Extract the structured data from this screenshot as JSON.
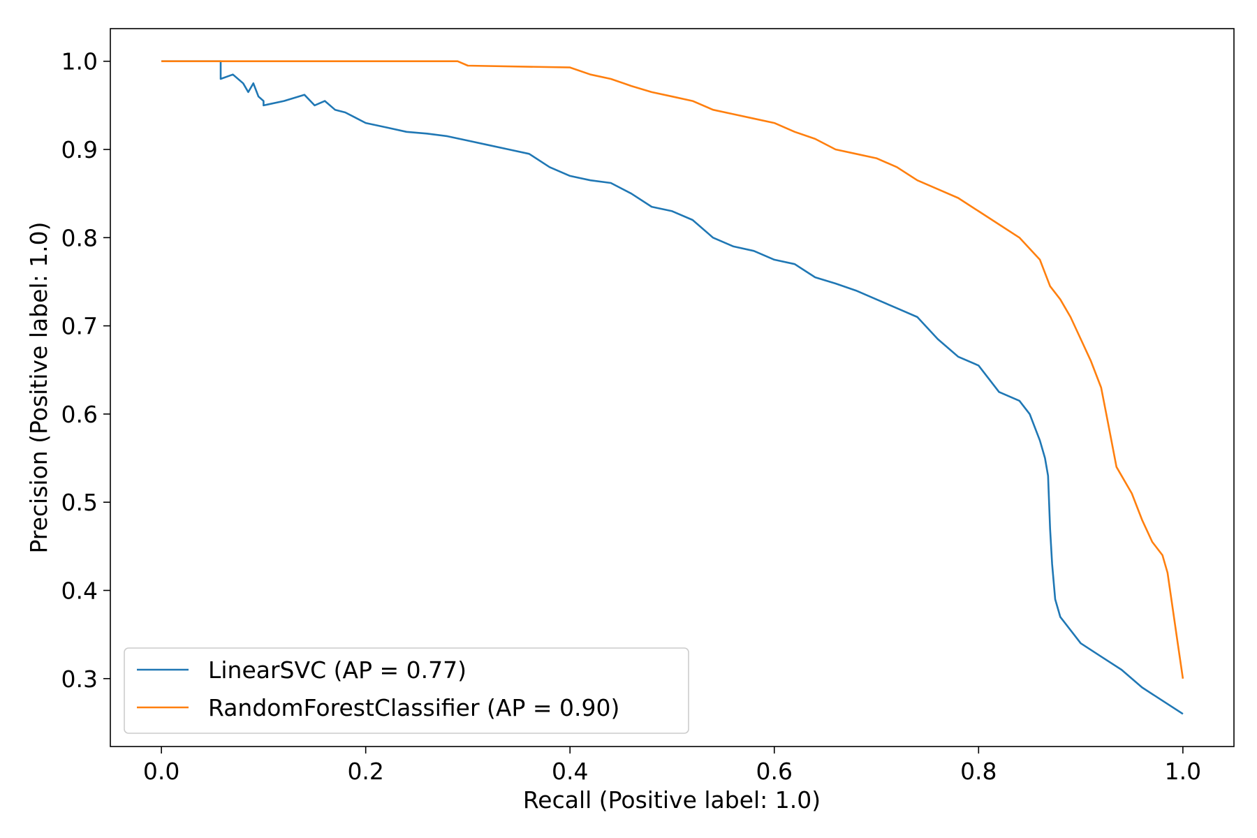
{
  "chart_data": {
    "type": "line",
    "title": "",
    "xlabel": "Recall (Positive label: 1.0)",
    "ylabel": "Precision (Positive label: 1.0)",
    "xlim": [
      -0.05,
      1.05
    ],
    "ylim": [
      0.223,
      1.037
    ],
    "xticks": [
      0.0,
      0.2,
      0.4,
      0.6,
      0.8,
      1.0
    ],
    "xtick_labels": [
      "0.0",
      "0.2",
      "0.4",
      "0.6",
      "0.8",
      "1.0"
    ],
    "yticks": [
      0.3,
      0.4,
      0.5,
      0.6,
      0.7,
      0.8,
      0.9,
      1.0
    ],
    "ytick_labels": [
      "0.3",
      "0.4",
      "0.5",
      "0.6",
      "0.7",
      "0.8",
      "0.9",
      "1.0"
    ],
    "grid": false,
    "legend_position": "lower-left",
    "series": [
      {
        "name": "LinearSVC (AP = 0.77)",
        "color": "#1f77b4",
        "x": [
          0.0,
          0.058,
          0.058,
          0.07,
          0.08,
          0.085,
          0.09,
          0.095,
          0.1,
          0.1,
          0.12,
          0.14,
          0.15,
          0.16,
          0.17,
          0.18,
          0.2,
          0.22,
          0.24,
          0.26,
          0.28,
          0.3,
          0.32,
          0.34,
          0.36,
          0.38,
          0.4,
          0.42,
          0.44,
          0.46,
          0.48,
          0.5,
          0.52,
          0.54,
          0.56,
          0.58,
          0.6,
          0.62,
          0.64,
          0.66,
          0.68,
          0.7,
          0.72,
          0.74,
          0.76,
          0.78,
          0.8,
          0.82,
          0.84,
          0.85,
          0.86,
          0.865,
          0.868,
          0.87,
          0.872,
          0.875,
          0.88,
          0.9,
          0.92,
          0.94,
          0.96,
          0.98,
          1.0
        ],
        "y": [
          1.0,
          1.0,
          0.98,
          0.985,
          0.975,
          0.965,
          0.975,
          0.96,
          0.955,
          0.95,
          0.955,
          0.962,
          0.95,
          0.955,
          0.945,
          0.942,
          0.93,
          0.925,
          0.92,
          0.918,
          0.915,
          0.91,
          0.905,
          0.9,
          0.895,
          0.88,
          0.87,
          0.865,
          0.862,
          0.85,
          0.835,
          0.83,
          0.82,
          0.8,
          0.79,
          0.785,
          0.775,
          0.77,
          0.755,
          0.748,
          0.74,
          0.73,
          0.72,
          0.71,
          0.685,
          0.665,
          0.655,
          0.625,
          0.615,
          0.6,
          0.57,
          0.55,
          0.53,
          0.47,
          0.43,
          0.39,
          0.37,
          0.34,
          0.325,
          0.31,
          0.29,
          0.275,
          0.26
        ]
      },
      {
        "name": "RandomForestClassifier (AP = 0.90)",
        "color": "#ff7f0e",
        "x": [
          0.0,
          0.29,
          0.3,
          0.4,
          0.42,
          0.44,
          0.46,
          0.48,
          0.5,
          0.52,
          0.54,
          0.56,
          0.58,
          0.6,
          0.62,
          0.64,
          0.66,
          0.68,
          0.7,
          0.72,
          0.74,
          0.76,
          0.78,
          0.8,
          0.82,
          0.84,
          0.86,
          0.87,
          0.88,
          0.89,
          0.9,
          0.91,
          0.92,
          0.925,
          0.93,
          0.935,
          0.94,
          0.95,
          0.96,
          0.97,
          0.98,
          0.985,
          0.99,
          0.995,
          1.0
        ],
        "y": [
          1.0,
          1.0,
          0.995,
          0.993,
          0.985,
          0.98,
          0.972,
          0.965,
          0.96,
          0.955,
          0.945,
          0.94,
          0.935,
          0.93,
          0.92,
          0.912,
          0.9,
          0.895,
          0.89,
          0.88,
          0.865,
          0.855,
          0.845,
          0.83,
          0.815,
          0.8,
          0.775,
          0.745,
          0.73,
          0.71,
          0.685,
          0.66,
          0.63,
          0.6,
          0.57,
          0.54,
          0.53,
          0.51,
          0.48,
          0.455,
          0.44,
          0.42,
          0.38,
          0.34,
          0.3
        ]
      }
    ]
  }
}
